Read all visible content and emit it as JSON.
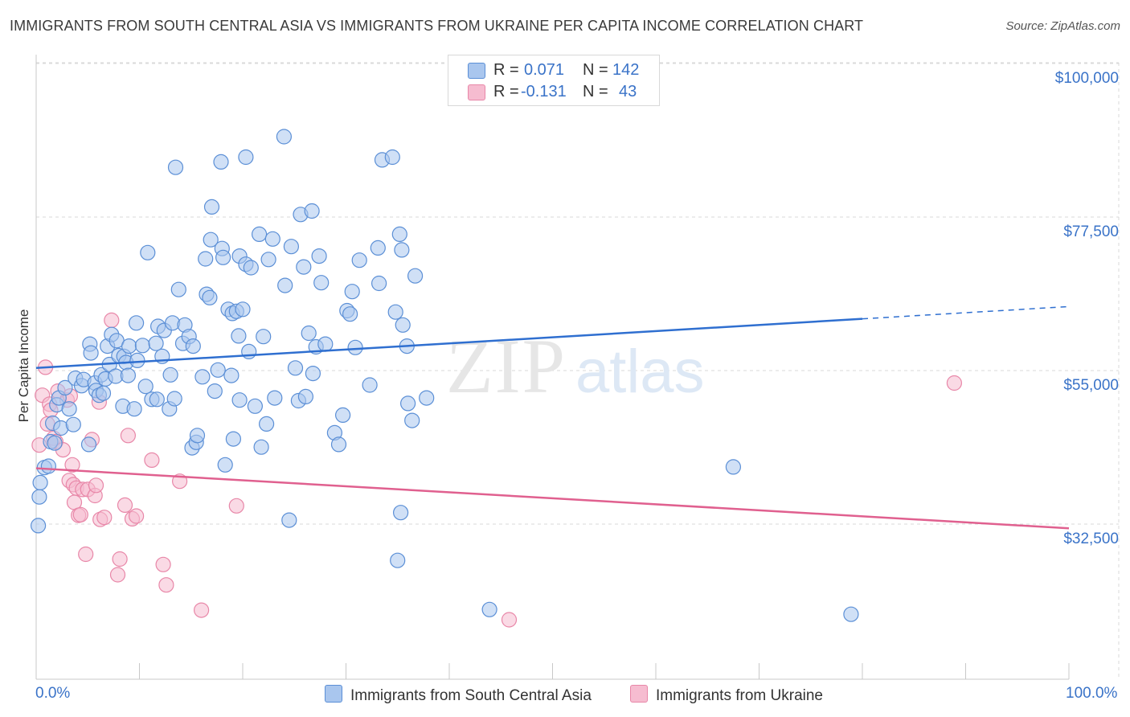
{
  "header": {
    "title": "IMMIGRANTS FROM SOUTH CENTRAL ASIA VS IMMIGRANTS FROM UKRAINE PER CAPITA INCOME CORRELATION CHART",
    "source": "Source: ZipAtlas.com"
  },
  "legend": {
    "blue": {
      "r_label": "R =",
      "r_value": "0.071",
      "n_label": "N =",
      "n_value": "142"
    },
    "pink": {
      "r_label": "R =",
      "r_value": "-0.131",
      "n_label": "N =",
      "n_value": "43"
    }
  },
  "bottom_legend": {
    "blue_label": "Immigrants from South Central Asia",
    "pink_label": "Immigrants from Ukraine"
  },
  "colors": {
    "blue_fill": "#a9c6ee",
    "blue_stroke": "#5b8fd6",
    "blue_line": "#2f6fd0",
    "pink_fill": "#f6bcd0",
    "pink_stroke": "#e887a8",
    "pink_line": "#e0608f",
    "grid": "#d9d9d9",
    "tick_text": "#3a73c8"
  },
  "chart_data": {
    "type": "scatter",
    "title": "IMMIGRANTS FROM SOUTH CENTRAL ASIA VS IMMIGRANTS FROM UKRAINE PER CAPITA INCOME CORRELATION CHART",
    "xlabel": "",
    "ylabel": "Per Capita Income",
    "xlim": [
      0,
      100
    ],
    "ylim": [
      11000,
      104000
    ],
    "x_tick_labels": [
      "0.0%",
      "100.0%"
    ],
    "y_ticks": [
      32500,
      55000,
      77500,
      100000
    ],
    "y_tick_labels": [
      "$32,500",
      "$55,000",
      "$77,500",
      "$100,000"
    ],
    "watermark": {
      "zip": "ZIP",
      "atlas": "atlas"
    },
    "series": [
      {
        "name": "Immigrants from South Central Asia",
        "color": "#5b8fd6",
        "trend": {
          "x0": 0,
          "y0": 57500,
          "x1": 80,
          "y1": 64700,
          "dash_to_x": 100,
          "dash_to_y": 66500
        },
        "points": [
          [
            0.2,
            34400
          ],
          [
            0.3,
            38600
          ],
          [
            0.4,
            40700
          ],
          [
            0.8,
            42900
          ],
          [
            1.2,
            43100
          ],
          [
            1.4,
            46700
          ],
          [
            1.6,
            49400
          ],
          [
            1.8,
            46500
          ],
          [
            2.0,
            52100
          ],
          [
            2.2,
            53100
          ],
          [
            2.4,
            48700
          ],
          [
            2.8,
            54600
          ],
          [
            3.2,
            51500
          ],
          [
            3.6,
            49200
          ],
          [
            3.8,
            56000
          ],
          [
            4.4,
            54900
          ],
          [
            4.6,
            55800
          ],
          [
            5.1,
            46300
          ],
          [
            5.2,
            61000
          ],
          [
            5.3,
            59700
          ],
          [
            5.7,
            55300
          ],
          [
            5.8,
            54200
          ],
          [
            6.1,
            53500
          ],
          [
            6.3,
            56500
          ],
          [
            6.5,
            53800
          ],
          [
            6.7,
            55900
          ],
          [
            6.9,
            60700
          ],
          [
            7.1,
            58000
          ],
          [
            7.3,
            62400
          ],
          [
            7.7,
            56300
          ],
          [
            7.8,
            61500
          ],
          [
            8.0,
            59300
          ],
          [
            8.4,
            51900
          ],
          [
            8.5,
            59200
          ],
          [
            8.7,
            58300
          ],
          [
            8.9,
            56400
          ],
          [
            9.0,
            60700
          ],
          [
            9.5,
            51500
          ],
          [
            9.7,
            64100
          ],
          [
            9.8,
            58600
          ],
          [
            10.3,
            60800
          ],
          [
            10.6,
            54800
          ],
          [
            10.8,
            74400
          ],
          [
            11.2,
            52900
          ],
          [
            11.6,
            61100
          ],
          [
            11.7,
            52900
          ],
          [
            11.8,
            63600
          ],
          [
            12.2,
            59200
          ],
          [
            12.4,
            63000
          ],
          [
            12.9,
            51500
          ],
          [
            13.0,
            56500
          ],
          [
            13.2,
            64100
          ],
          [
            13.4,
            53000
          ],
          [
            13.5,
            86900
          ],
          [
            13.8,
            69000
          ],
          [
            14.2,
            61100
          ],
          [
            14.4,
            63800
          ],
          [
            14.8,
            62100
          ],
          [
            15.1,
            45800
          ],
          [
            15.2,
            60700
          ],
          [
            15.5,
            46600
          ],
          [
            15.6,
            47600
          ],
          [
            16.1,
            56200
          ],
          [
            16.4,
            73500
          ],
          [
            16.5,
            68300
          ],
          [
            16.8,
            67800
          ],
          [
            16.9,
            76300
          ],
          [
            17.0,
            81100
          ],
          [
            17.3,
            54100
          ],
          [
            17.6,
            57200
          ],
          [
            17.9,
            87700
          ],
          [
            18.0,
            75000
          ],
          [
            18.1,
            73700
          ],
          [
            18.3,
            43300
          ],
          [
            18.6,
            66100
          ],
          [
            18.9,
            56400
          ],
          [
            19.0,
            65500
          ],
          [
            19.1,
            47100
          ],
          [
            19.4,
            65800
          ],
          [
            19.6,
            62200
          ],
          [
            19.7,
            73900
          ],
          [
            19.7,
            52800
          ],
          [
            20.0,
            66100
          ],
          [
            20.3,
            88400
          ],
          [
            20.3,
            72700
          ],
          [
            20.6,
            59900
          ],
          [
            20.8,
            72200
          ],
          [
            21.2,
            51900
          ],
          [
            21.6,
            77100
          ],
          [
            21.8,
            45900
          ],
          [
            22.0,
            62100
          ],
          [
            22.3,
            49300
          ],
          [
            22.5,
            73400
          ],
          [
            22.9,
            76400
          ],
          [
            23.1,
            53100
          ],
          [
            24.0,
            91400
          ],
          [
            24.1,
            69600
          ],
          [
            24.5,
            35200
          ],
          [
            24.7,
            75300
          ],
          [
            25.1,
            57500
          ],
          [
            25.4,
            52700
          ],
          [
            25.6,
            80000
          ],
          [
            25.9,
            72300
          ],
          [
            26.1,
            53300
          ],
          [
            26.4,
            62600
          ],
          [
            26.7,
            80500
          ],
          [
            26.8,
            56700
          ],
          [
            27.1,
            60600
          ],
          [
            27.4,
            73900
          ],
          [
            27.6,
            70000
          ],
          [
            28.0,
            61000
          ],
          [
            28.9,
            48000
          ],
          [
            29.3,
            46300
          ],
          [
            29.7,
            50600
          ],
          [
            30.1,
            65900
          ],
          [
            30.4,
            65400
          ],
          [
            30.6,
            68700
          ],
          [
            30.9,
            60500
          ],
          [
            31.3,
            73300
          ],
          [
            32.3,
            55000
          ],
          [
            33.1,
            75100
          ],
          [
            33.2,
            69900
          ],
          [
            33.5,
            88000
          ],
          [
            34.5,
            88400
          ],
          [
            34.8,
            65700
          ],
          [
            35.0,
            29300
          ],
          [
            35.2,
            77100
          ],
          [
            35.3,
            36300
          ],
          [
            35.4,
            74800
          ],
          [
            35.5,
            63800
          ],
          [
            35.9,
            60700
          ],
          [
            36.0,
            52300
          ],
          [
            36.4,
            49800
          ],
          [
            36.7,
            71000
          ],
          [
            37.8,
            53100
          ],
          [
            43.9,
            22100
          ],
          [
            67.5,
            43000
          ],
          [
            78.9,
            21400
          ]
        ]
      },
      {
        "name": "Immigrants from Ukraine",
        "color": "#e887a8",
        "trend": {
          "x0": 0,
          "y0": 42800,
          "x1": 100,
          "y1": 34000
        },
        "points": [
          [
            0.3,
            46200
          ],
          [
            0.6,
            53500
          ],
          [
            0.9,
            57600
          ],
          [
            1.1,
            49300
          ],
          [
            1.3,
            52200
          ],
          [
            1.4,
            51300
          ],
          [
            1.7,
            47200
          ],
          [
            1.9,
            46700
          ],
          [
            2.1,
            54100
          ],
          [
            2.6,
            45500
          ],
          [
            3.0,
            52800
          ],
          [
            3.2,
            41000
          ],
          [
            3.3,
            53400
          ],
          [
            3.5,
            43300
          ],
          [
            3.6,
            40400
          ],
          [
            3.7,
            37800
          ],
          [
            3.9,
            39900
          ],
          [
            4.1,
            35900
          ],
          [
            4.3,
            36000
          ],
          [
            4.5,
            39700
          ],
          [
            4.8,
            30200
          ],
          [
            5.0,
            39700
          ],
          [
            5.4,
            47000
          ],
          [
            5.7,
            38800
          ],
          [
            5.8,
            40300
          ],
          [
            6.1,
            52500
          ],
          [
            6.2,
            35300
          ],
          [
            6.6,
            35600
          ],
          [
            7.3,
            64500
          ],
          [
            7.9,
            27200
          ],
          [
            8.1,
            29500
          ],
          [
            8.6,
            37400
          ],
          [
            8.9,
            47600
          ],
          [
            9.3,
            35400
          ],
          [
            9.7,
            35800
          ],
          [
            11.2,
            44000
          ],
          [
            12.3,
            28700
          ],
          [
            12.6,
            25700
          ],
          [
            13.9,
            40900
          ],
          [
            16.0,
            22000
          ],
          [
            19.4,
            37300
          ],
          [
            45.8,
            20600
          ],
          [
            88.9,
            55300
          ]
        ]
      }
    ]
  }
}
